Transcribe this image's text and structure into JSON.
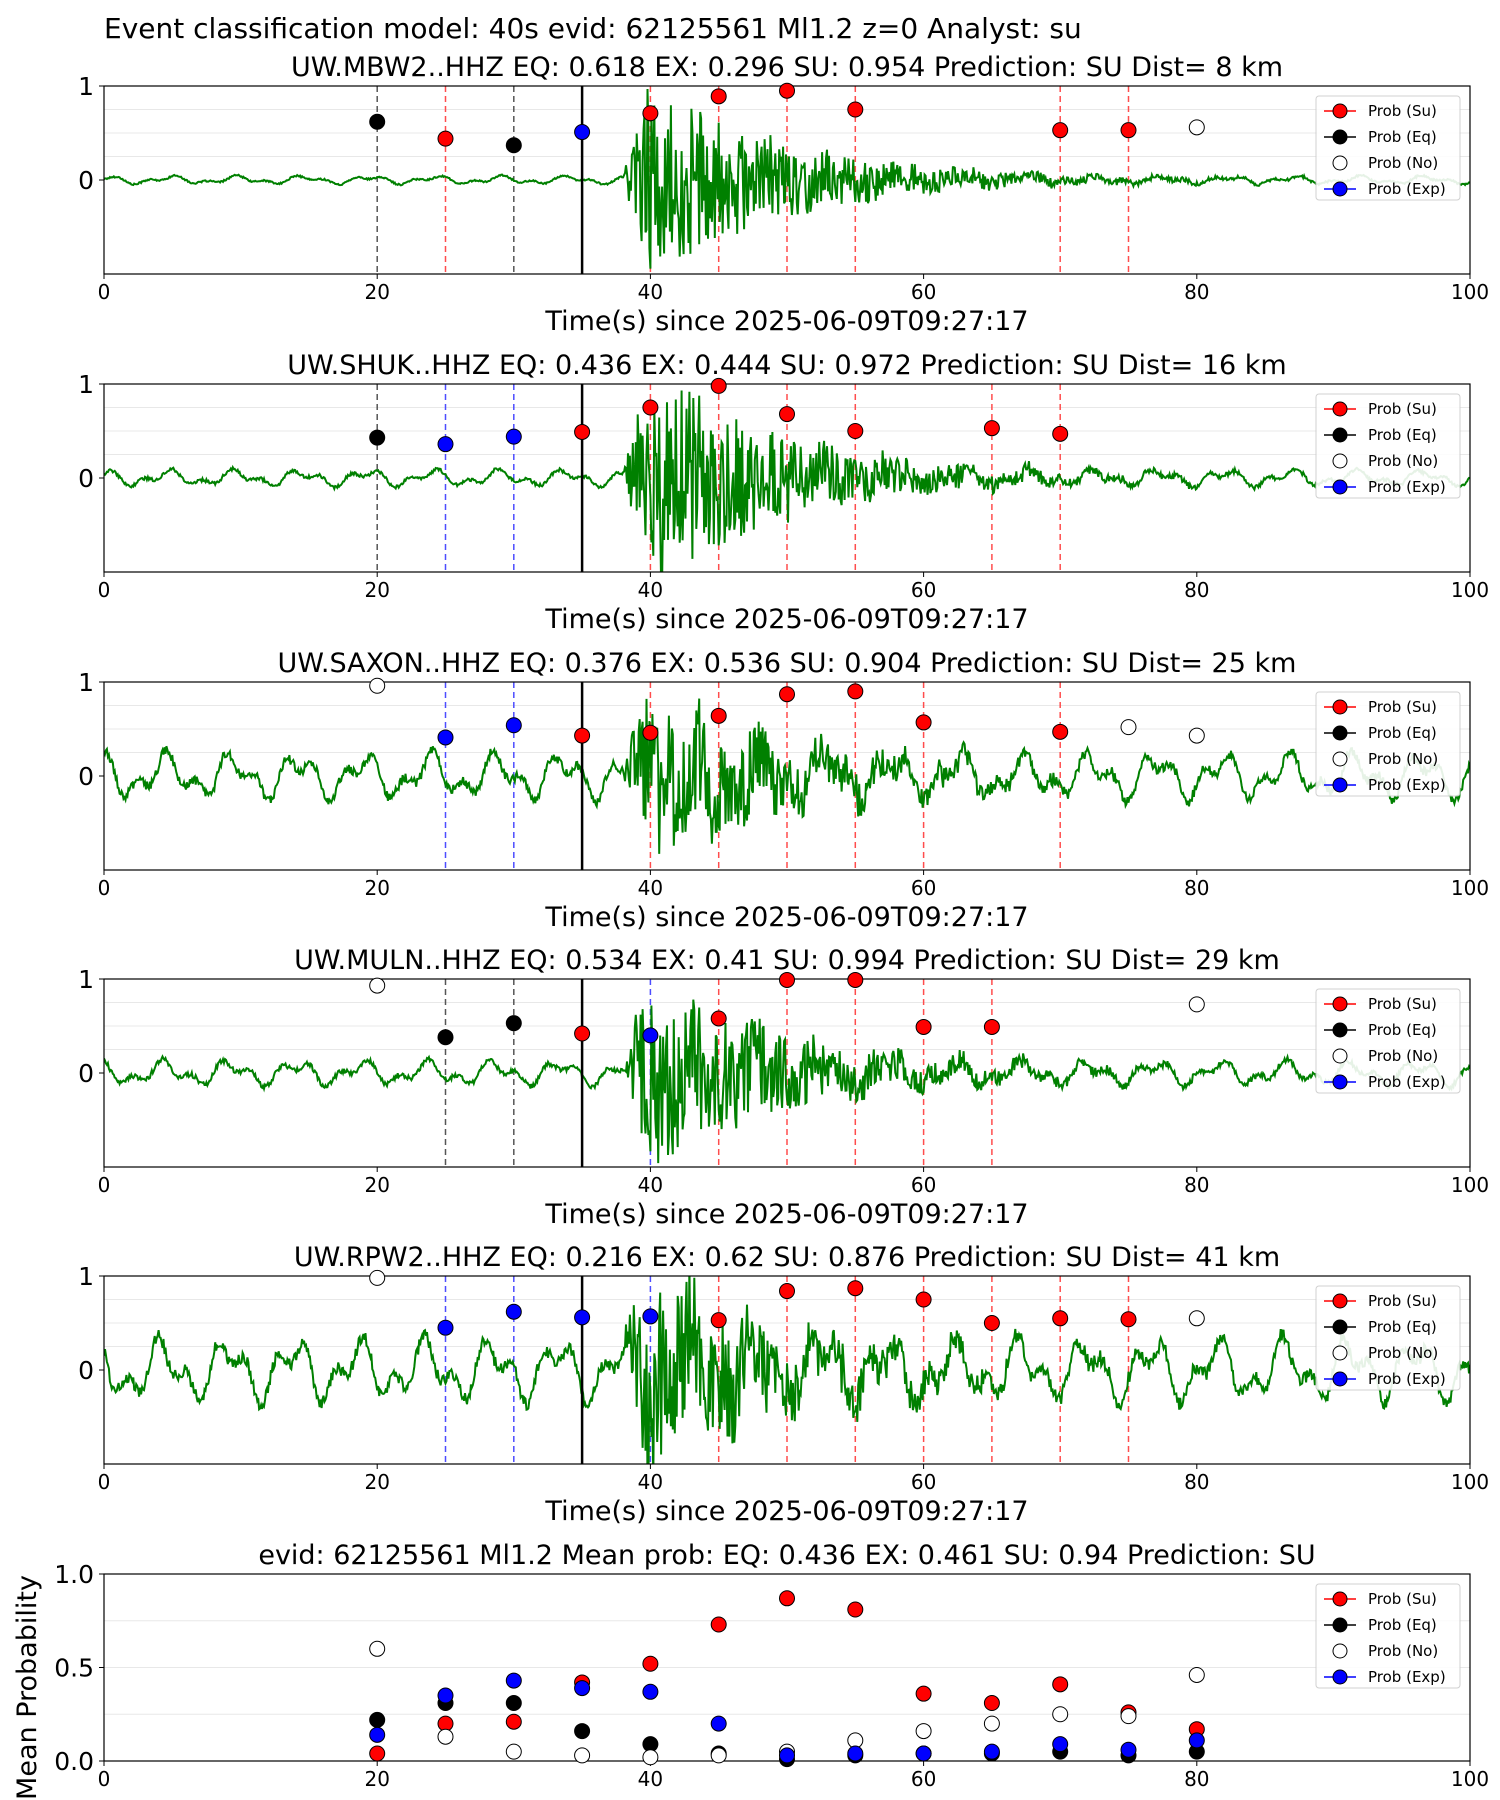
{
  "figure_title": "Event classification model: 40s evid: 62125561 Ml1.2 z=0 Analyst: su",
  "colors": {
    "su": "#ff0000",
    "eq": "#000000",
    "no": "#ffffff",
    "exp": "#0000ff",
    "waveform": "#008000"
  },
  "legend_labels": [
    "Prob (Su)",
    "Prob (Eq)",
    "Prob (No)",
    "Prob (Exp)"
  ],
  "chart_data": [
    {
      "type": "scatter",
      "title": "UW.MBW2..HHZ   EQ: 0.618  EX: 0.296  SU: 0.954   Prediction: SU    Dist= 8 km",
      "xlabel": "Time(s) since 2025-06-09T09:27:17",
      "xlim": [
        0,
        100
      ],
      "ylim": [
        -1,
        1
      ],
      "xticks": [
        "0",
        "20",
        "40",
        "60",
        "80",
        "100"
      ],
      "yticks": [
        "1",
        "0"
      ],
      "pick_time": 35,
      "noise_amp": 0.05,
      "signal_amp": 0.9,
      "series": [
        {
          "name": "Prob (Su)",
          "x": [
            25,
            40,
            45,
            50,
            55,
            70,
            75
          ],
          "y": [
            0.44,
            0.71,
            0.89,
            0.95,
            0.75,
            0.53,
            0.53
          ]
        },
        {
          "name": "Prob (Eq)",
          "x": [
            20,
            30
          ],
          "y": [
            0.62,
            0.37
          ]
        },
        {
          "name": "Prob (No)",
          "x": [
            80
          ],
          "y": [
            0.56
          ]
        },
        {
          "name": "Prob (Exp)",
          "x": [
            35
          ],
          "y": [
            0.51
          ]
        }
      ],
      "marker_types": [
        "su",
        "eq",
        "no",
        "exp"
      ]
    },
    {
      "type": "scatter",
      "title": "UW.SHUK..HHZ   EQ: 0.436  EX: 0.444  SU: 0.972   Prediction: SU    Dist= 16 km",
      "xlabel": "Time(s) since 2025-06-09T09:27:17",
      "xlim": [
        0,
        100
      ],
      "ylim": [
        -1,
        1
      ],
      "xticks": [
        "0",
        "20",
        "40",
        "60",
        "80",
        "100"
      ],
      "yticks": [
        "1",
        "0"
      ],
      "pick_time": 35,
      "noise_amp": 0.1,
      "signal_amp": 1.0,
      "series": [
        {
          "name": "Prob (Su)",
          "x": [
            35,
            40,
            45,
            50,
            55,
            65,
            70
          ],
          "y": [
            0.49,
            0.75,
            0.98,
            0.68,
            0.5,
            0.53,
            0.47
          ]
        },
        {
          "name": "Prob (Eq)",
          "x": [
            20
          ],
          "y": [
            0.43
          ]
        },
        {
          "name": "Prob (No)",
          "x": [],
          "y": []
        },
        {
          "name": "Prob (Exp)",
          "x": [
            25,
            30
          ],
          "y": [
            0.36,
            0.44
          ]
        }
      ]
    },
    {
      "type": "scatter",
      "title": "UW.SAXON..HHZ   EQ: 0.376  EX: 0.536  SU: 0.904   Prediction: SU    Dist= 25 km",
      "xlabel": "Time(s) since 2025-06-09T09:27:17",
      "xlim": [
        0,
        100
      ],
      "ylim": [
        -1,
        1
      ],
      "xticks": [
        "0",
        "20",
        "40",
        "60",
        "80",
        "100"
      ],
      "yticks": [
        "1",
        "0"
      ],
      "pick_time": 35,
      "noise_amp": 0.28,
      "signal_amp": 0.75,
      "series": [
        {
          "name": "Prob (Su)",
          "x": [
            35,
            40,
            45,
            50,
            55,
            60,
            70
          ],
          "y": [
            0.43,
            0.46,
            0.64,
            0.87,
            0.9,
            0.57,
            0.47
          ]
        },
        {
          "name": "Prob (Eq)",
          "x": [],
          "y": []
        },
        {
          "name": "Prob (No)",
          "x": [
            20,
            75,
            80
          ],
          "y": [
            0.96,
            0.52,
            0.43
          ]
        },
        {
          "name": "Prob (Exp)",
          "x": [
            25,
            30
          ],
          "y": [
            0.41,
            0.54
          ]
        }
      ]
    },
    {
      "type": "scatter",
      "title": "UW.MULN..HHZ   EQ: 0.534  EX: 0.41  SU: 0.994   Prediction: SU    Dist= 29 km",
      "xlabel": "Time(s) since 2025-06-09T09:27:17",
      "xlim": [
        0,
        100
      ],
      "ylim": [
        -1,
        1
      ],
      "xticks": [
        "0",
        "20",
        "40",
        "60",
        "80",
        "100"
      ],
      "yticks": [
        "1",
        "0"
      ],
      "pick_time": 35,
      "noise_amp": 0.15,
      "signal_amp": 0.85,
      "series": [
        {
          "name": "Prob (Su)",
          "x": [
            35,
            45,
            50,
            55,
            60,
            65
          ],
          "y": [
            0.42,
            0.58,
            0.99,
            0.99,
            0.49,
            0.49
          ]
        },
        {
          "name": "Prob (Eq)",
          "x": [
            25,
            30
          ],
          "y": [
            0.38,
            0.53
          ]
        },
        {
          "name": "Prob (No)",
          "x": [
            20,
            80
          ],
          "y": [
            0.93,
            0.73
          ]
        },
        {
          "name": "Prob (Exp)",
          "x": [
            40
          ],
          "y": [
            0.4
          ]
        }
      ]
    },
    {
      "type": "scatter",
      "title": "UW.RPW2..HHZ   EQ: 0.216  EX: 0.62  SU: 0.876   Prediction: SU    Dist= 41 km",
      "xlabel": "Time(s) since 2025-06-09T09:27:17",
      "xlim": [
        0,
        100
      ],
      "ylim": [
        -1,
        1
      ],
      "xticks": [
        "0",
        "20",
        "40",
        "60",
        "80",
        "100"
      ],
      "yticks": [
        "1",
        "0"
      ],
      "pick_time": 35,
      "noise_amp": 0.38,
      "signal_amp": 0.85,
      "series": [
        {
          "name": "Prob (Su)",
          "x": [
            45,
            50,
            55,
            60,
            65,
            70,
            75
          ],
          "y": [
            0.53,
            0.84,
            0.87,
            0.75,
            0.5,
            0.55,
            0.54
          ]
        },
        {
          "name": "Prob (Eq)",
          "x": [],
          "y": []
        },
        {
          "name": "Prob (No)",
          "x": [
            20,
            80
          ],
          "y": [
            0.98,
            0.55
          ]
        },
        {
          "name": "Prob (Exp)",
          "x": [
            25,
            30,
            35,
            40
          ],
          "y": [
            0.45,
            0.62,
            0.56,
            0.57
          ]
        }
      ]
    },
    {
      "type": "scatter",
      "title": "evid: 62125561  Ml1.2   Mean prob:    EQ: 0.436  EX: 0.461  SU: 0.94   Prediction: SU",
      "ylabel": "Mean Probability",
      "xlim": [
        0,
        100
      ],
      "ylim": [
        0,
        1
      ],
      "xticks": [
        "0",
        "20",
        "40",
        "60",
        "80",
        "100"
      ],
      "yticks": [
        "1.0",
        "0.5",
        "0.0"
      ],
      "series": [
        {
          "name": "Prob (Su)",
          "x": [
            20,
            25,
            30,
            35,
            40,
            45,
            50,
            55,
            60,
            65,
            70,
            75,
            80
          ],
          "y": [
            0.04,
            0.2,
            0.21,
            0.42,
            0.52,
            0.73,
            0.87,
            0.81,
            0.36,
            0.31,
            0.41,
            0.26,
            0.17
          ]
        },
        {
          "name": "Prob (Eq)",
          "x": [
            20,
            25,
            30,
            35,
            40,
            45,
            50,
            55,
            60,
            65,
            70,
            75,
            80
          ],
          "y": [
            0.22,
            0.31,
            0.31,
            0.16,
            0.09,
            0.04,
            0.01,
            0.03,
            0.04,
            0.04,
            0.05,
            0.03,
            0.05
          ]
        },
        {
          "name": "Prob (No)",
          "x": [
            20,
            25,
            30,
            35,
            40,
            45,
            50,
            55,
            60,
            65,
            70,
            75,
            80
          ],
          "y": [
            0.6,
            0.13,
            0.05,
            0.03,
            0.02,
            0.03,
            0.05,
            0.11,
            0.16,
            0.2,
            0.25,
            0.24,
            0.46
          ]
        },
        {
          "name": "Prob (Exp)",
          "x": [
            20,
            25,
            30,
            35,
            40,
            45,
            50,
            55,
            60,
            65,
            70,
            75,
            80
          ],
          "y": [
            0.14,
            0.35,
            0.43,
            0.39,
            0.37,
            0.2,
            0.03,
            0.04,
            0.04,
            0.05,
            0.09,
            0.06,
            0.11
          ]
        }
      ]
    }
  ]
}
